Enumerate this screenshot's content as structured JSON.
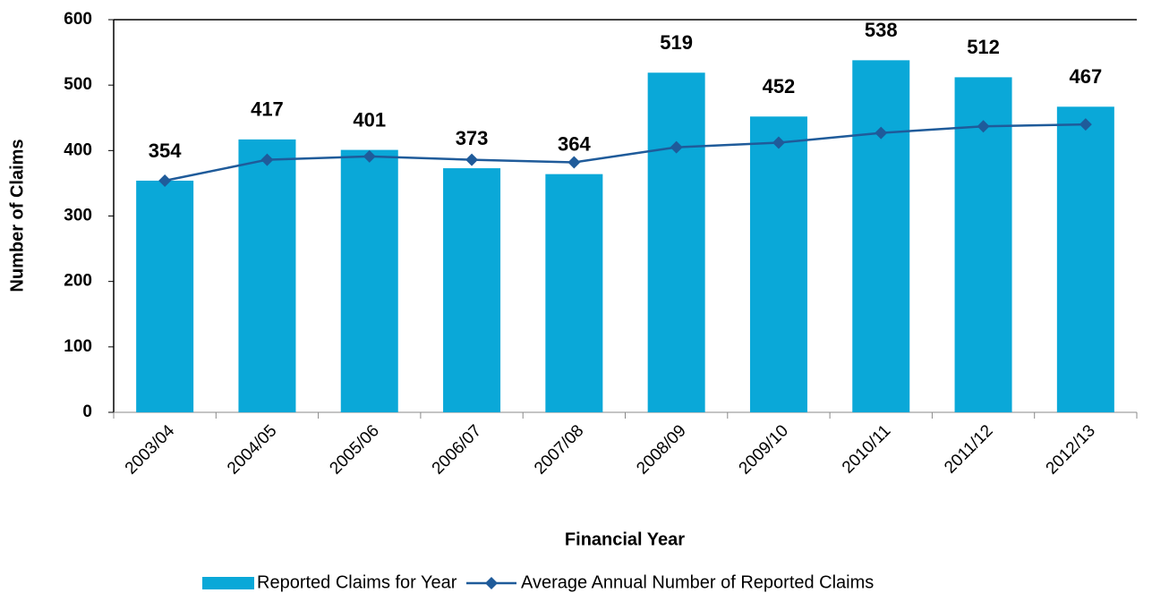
{
  "chart_data": {
    "type": "bar_line",
    "x_label": "Financial Year",
    "y_label": "Number of Claims",
    "categories": [
      "2003/04",
      "2004/05",
      "2005/06",
      "2006/07",
      "2007/08",
      "2008/09",
      "2009/10",
      "2010/11",
      "2011/12",
      "2012/13"
    ],
    "series": [
      {
        "name": "Reported Claims for Year",
        "type": "bar",
        "color": "#0aa8d8",
        "values": [
          354,
          417,
          401,
          373,
          364,
          519,
          452,
          538,
          512,
          467
        ]
      },
      {
        "name": "Average Annual Number of Reported Claims",
        "type": "line",
        "color": "#1f5b9a",
        "values": [
          354,
          386,
          391,
          386,
          382,
          405,
          412,
          427,
          437,
          440
        ]
      }
    ],
    "ylim": [
      0,
      600
    ],
    "yticks": [
      0,
      100,
      200,
      300,
      400,
      500,
      600
    ],
    "legend": "bottom"
  }
}
